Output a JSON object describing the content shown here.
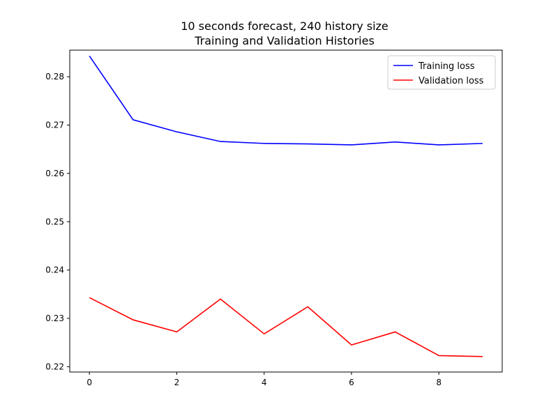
{
  "chart_data": {
    "type": "line",
    "title": "10 seconds forecast, 240 history size",
    "subtitle": "Training and Validation Histories",
    "xlabel": "",
    "ylabel": "",
    "x": [
      0,
      1,
      2,
      3,
      4,
      5,
      6,
      7,
      8,
      9
    ],
    "xlim": [
      -0.45,
      9.45
    ],
    "ylim": [
      0.2189,
      0.2855
    ],
    "xticks": [
      0,
      2,
      4,
      6,
      8
    ],
    "yticks": [
      0.22,
      0.23,
      0.24,
      0.25,
      0.26,
      0.27,
      0.28
    ],
    "ytick_labels": [
      "0.22",
      "0.23",
      "0.24",
      "0.25",
      "0.26",
      "0.27",
      "0.28"
    ],
    "grid": false,
    "legend_position": "top-right",
    "series": [
      {
        "name": "Training loss",
        "color": "#0000ff",
        "values": [
          0.2843,
          0.2711,
          0.2686,
          0.2666,
          0.2662,
          0.2661,
          0.2659,
          0.2665,
          0.2659,
          0.2662
        ]
      },
      {
        "name": "Validation loss",
        "color": "#ff0000",
        "values": [
          0.2343,
          0.2297,
          0.2272,
          0.234,
          0.2268,
          0.2324,
          0.2245,
          0.2272,
          0.2223,
          0.2221
        ]
      }
    ]
  }
}
